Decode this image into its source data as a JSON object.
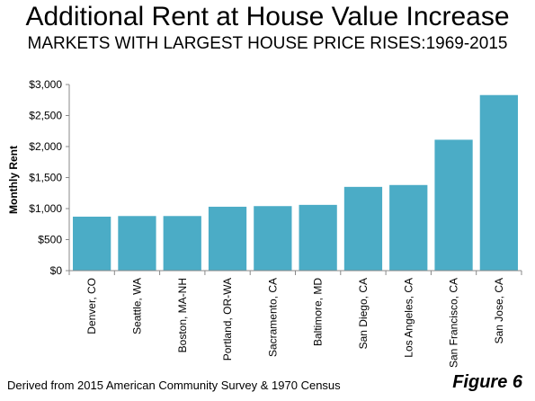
{
  "title": "Additional Rent at House Value Increase",
  "subtitle": "MARKETS WITH LARGEST HOUSE PRICE RISES:1969-2015",
  "footnote": "Derived from 2015 American Community Survey & 1970 Census",
  "figure_label": "Figure 6",
  "chart_data": {
    "type": "bar",
    "title": "Additional Rent at House Value Increase",
    "subtitle": "MARKETS WITH LARGEST HOUSE PRICE RISES:1969-2015",
    "xlabel": "",
    "ylabel": "Monthly Rent",
    "ylim": [
      0,
      3000
    ],
    "yticks": [
      0,
      500,
      1000,
      1500,
      2000,
      2500,
      3000
    ],
    "ytick_labels": [
      "$0",
      "$500",
      "$1,000",
      "$1,500",
      "$2,000",
      "$2,500",
      "$3,000"
    ],
    "grid": false,
    "legend": "none",
    "bar_color": "#4BACC6",
    "categories": [
      "Denver, CO",
      "Seattle, WA",
      "Boston, MA-NH",
      "Portland, OR-WA",
      "Sacramento, CA",
      "Baltimore, MD",
      "San Diego, CA",
      "Los Angeles, CA",
      "San Francisco, CA",
      "San Jose, CA"
    ],
    "values": [
      870,
      880,
      880,
      1030,
      1040,
      1060,
      1350,
      1380,
      2110,
      2830
    ]
  }
}
